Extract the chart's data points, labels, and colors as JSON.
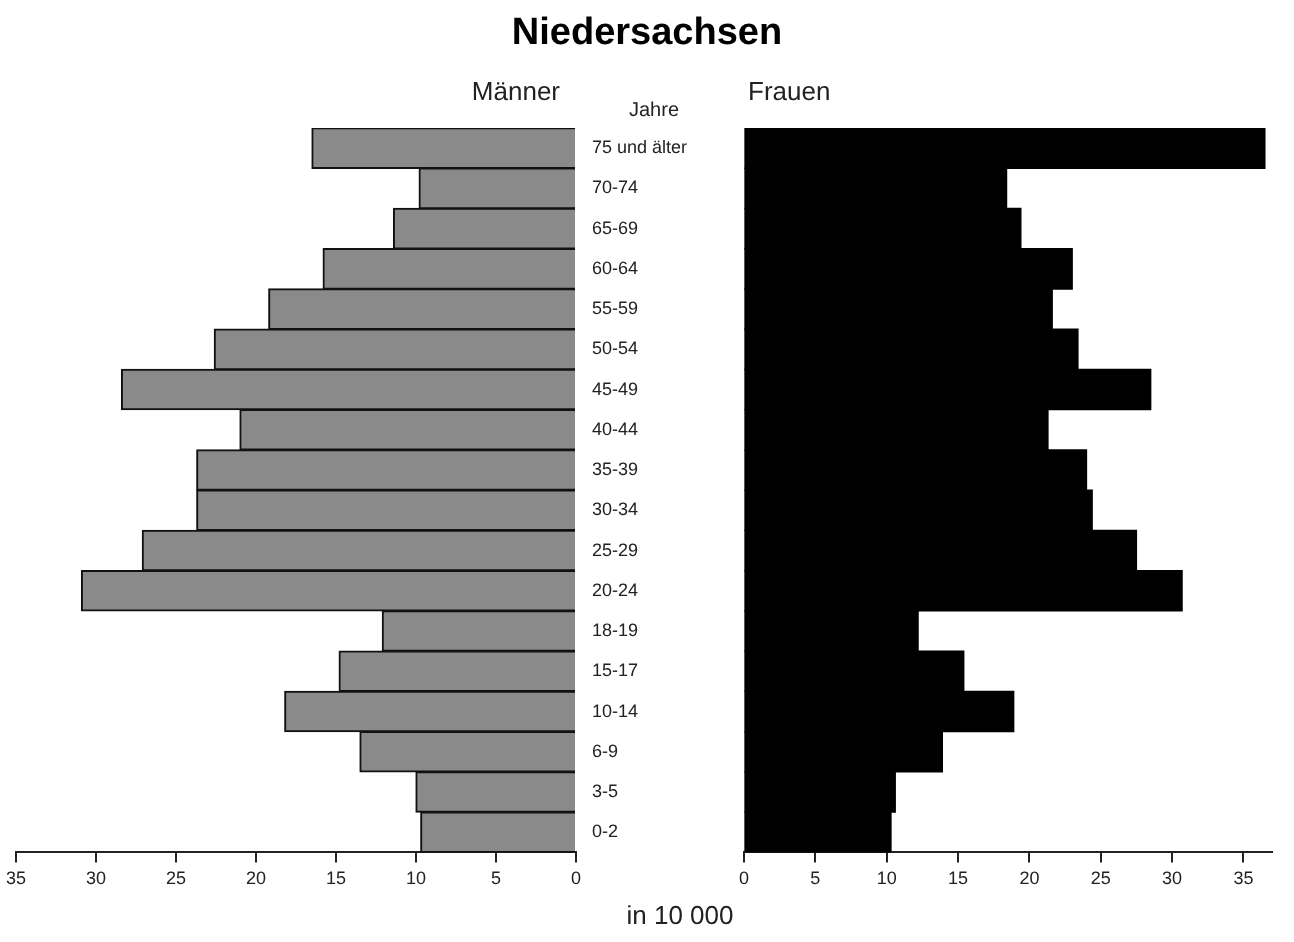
{
  "chart_data": [
    {
      "type": "bar",
      "title": "Niedersachsen",
      "xlabel": "in 10 000",
      "ylabel": "Jahre",
      "orientation": "horizontal",
      "grid": false,
      "legend": false,
      "categories": [
        "75 und älter",
        "70-74",
        "65-69",
        "60-64",
        "55-59",
        "50-54",
        "45-49",
        "40-44",
        "35-39",
        "30-34",
        "25-29",
        "20-24",
        "18-19",
        "15-17",
        "10-14",
        "6-9",
        "3-5",
        "0-2"
      ],
      "series": [
        {
          "name": "Männer",
          "color": "#8a8a8a",
          "values": [
            16.5,
            9.8,
            11.4,
            15.8,
            19.2,
            22.6,
            28.4,
            21.0,
            23.7,
            23.7,
            27.1,
            30.9,
            12.1,
            14.8,
            18.2,
            13.5,
            10.0,
            9.7
          ]
        }
      ],
      "xlim": [
        35,
        0
      ],
      "xticks": [
        35,
        30,
        25,
        20,
        15,
        10,
        5,
        0
      ]
    },
    {
      "type": "bar",
      "orientation": "horizontal",
      "tick_labels": "x",
      "grid": false,
      "legend": false,
      "categories": [
        null,
        null,
        null,
        null,
        null,
        null,
        null,
        null,
        null,
        null,
        null,
        null,
        null,
        null,
        null,
        null,
        null,
        null
      ],
      "series": [
        {
          "name": "Frauen",
          "color": "#000000",
          "values": [
            36.5,
            18.4,
            19.4,
            23.0,
            21.6,
            23.4,
            28.5,
            21.3,
            24.0,
            24.4,
            27.5,
            30.7,
            12.2,
            15.4,
            18.9,
            13.9,
            10.6,
            10.3
          ]
        }
      ],
      "xlim": [
        0,
        37
      ],
      "xticks": [
        0,
        5,
        10,
        15,
        20,
        25,
        30,
        35
      ]
    }
  ]
}
